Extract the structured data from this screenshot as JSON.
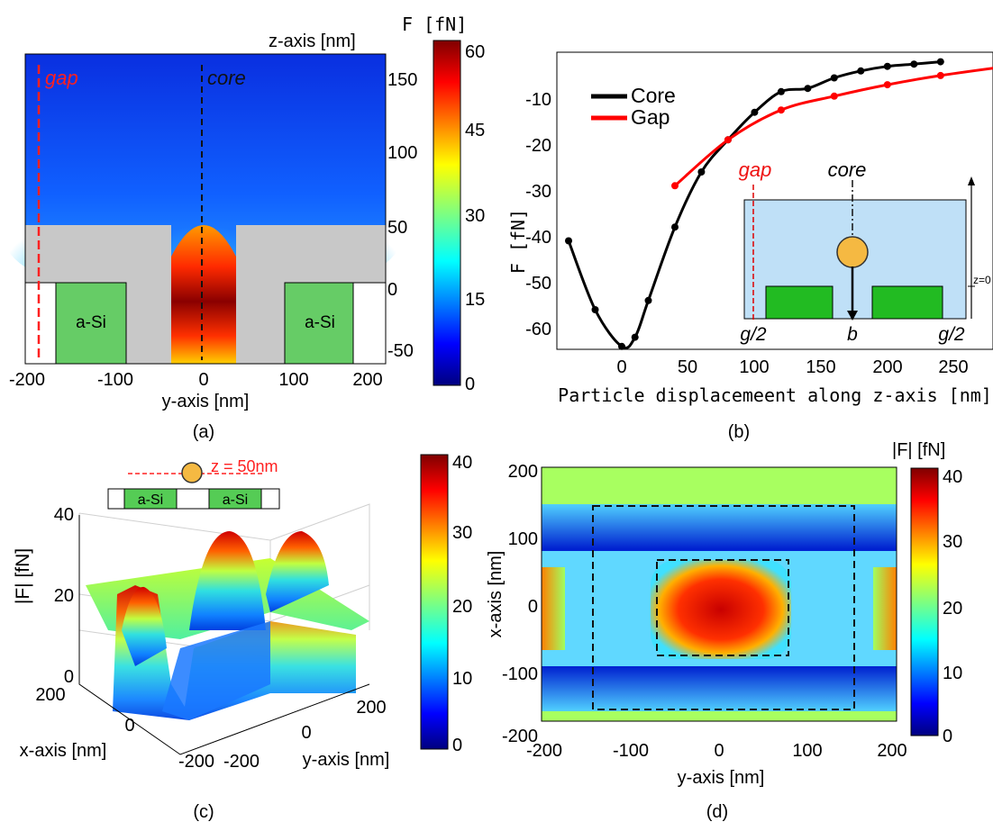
{
  "colormap": [
    "#00007f",
    "#0000ff",
    "#007fff",
    "#00ffff",
    "#7fff7f",
    "#ffff00",
    "#ff7f00",
    "#ff0000",
    "#7f0000"
  ],
  "panel_a": {
    "caption": "(a)",
    "xlabel": "y-axis [nm]",
    "zlabel": "z-axis [nm]",
    "cbar_title": "F [fN]",
    "xticks": [
      "-200",
      "-100",
      "0",
      "100",
      "200"
    ],
    "zticks": [
      "150",
      "100",
      "50",
      "0",
      "-50"
    ],
    "cbar_ticks": [
      "60",
      "45",
      "30",
      "15",
      "0"
    ],
    "gap_label": "gap",
    "core_label": "core",
    "si_left": "a-Si",
    "si_right": "a-Si"
  },
  "panel_b": {
    "caption": "(b)",
    "xlabel": "Particle displacemeent along z-axis [nm]",
    "ylabel": "F [fN]",
    "xticks": [
      "0",
      "50",
      "100",
      "150",
      "200",
      "250"
    ],
    "yticks": [
      "-10",
      "-20",
      "-30",
      "-40",
      "-50",
      "-60"
    ],
    "inset": {
      "gap": "gap",
      "core": "core",
      "left": "g/2",
      "mid": "b",
      "right": "g/2",
      "zlabel": "z=0"
    }
  },
  "panel_c": {
    "caption": "(c)",
    "zlabel": "|F| [fN]",
    "xlabel": "x-axis [nm]",
    "ylabel": "y-axis [nm]",
    "zticks": [
      "40",
      "20",
      "0"
    ],
    "xticks": [
      "200",
      "0",
      "-200"
    ],
    "yticks": [
      "-200",
      "0",
      "200"
    ],
    "cbar_ticks": [
      "40",
      "30",
      "20",
      "10",
      "0"
    ],
    "annotation": "z = 50nm",
    "si_left": "a-Si",
    "si_right": "a-Si"
  },
  "panel_d": {
    "caption": "(d)",
    "xlabel": "y-axis [nm]",
    "ylabel": "x-axis [nm]",
    "cbar_title": "|F| [fN]",
    "xticks": [
      "-200",
      "-100",
      "0",
      "100",
      "200"
    ],
    "yticks": [
      "200",
      "100",
      "0",
      "-100",
      "-200"
    ],
    "cbar_ticks": [
      "40",
      "30",
      "20",
      "10",
      "0"
    ]
  },
  "chart_data": [
    {
      "type": "heatmap",
      "panel": "a",
      "xlabel": "y-axis [nm]",
      "ylabel": "z-axis [nm]",
      "xlim": [
        -200,
        200
      ],
      "ylim": [
        -70,
        170
      ],
      "colorbar": {
        "title": "F [fN]",
        "range": [
          0,
          60
        ]
      }
    },
    {
      "type": "line",
      "panel": "b",
      "xlabel": "Particle displacemeent along z-axis [nm]",
      "ylabel": "F [fN]",
      "xlim": [
        -50,
        290
      ],
      "ylim": [
        -65,
        0
      ],
      "legend_position": "top-left",
      "series": [
        {
          "name": "Core",
          "color": "#000000",
          "x": [
            -40,
            -20,
            0,
            10,
            20,
            40,
            60,
            80,
            100,
            120,
            140,
            160,
            180,
            200,
            220,
            240
          ],
          "y": [
            -40,
            -55,
            -63,
            -61,
            -53,
            -37,
            -25,
            -18,
            -12,
            -7.5,
            -6.8,
            -4.5,
            -3,
            -2,
            -1.5,
            -1
          ]
        },
        {
          "name": "Gap",
          "color": "#ff0000",
          "x": [
            40,
            80,
            120,
            160,
            200,
            240,
            290
          ],
          "y": [
            -28,
            -18,
            -11.5,
            -8.5,
            -6,
            -4,
            -2
          ]
        }
      ]
    },
    {
      "type": "heatmap",
      "panel": "c",
      "zlabel": "|F| [fN]",
      "xlabel": "x-axis [nm]",
      "ylabel": "y-axis [nm]",
      "xlim": [
        -200,
        200
      ],
      "ylim": [
        -200,
        200
      ],
      "zlim": [
        0,
        40
      ],
      "colorbar": {
        "range": [
          0,
          40
        ]
      }
    },
    {
      "type": "heatmap",
      "panel": "d",
      "xlabel": "y-axis [nm]",
      "ylabel": "x-axis [nm]",
      "xlim": [
        -200,
        200
      ],
      "ylim": [
        -200,
        200
      ],
      "colorbar": {
        "title": "|F| [fN]",
        "range": [
          0,
          40
        ]
      }
    }
  ]
}
